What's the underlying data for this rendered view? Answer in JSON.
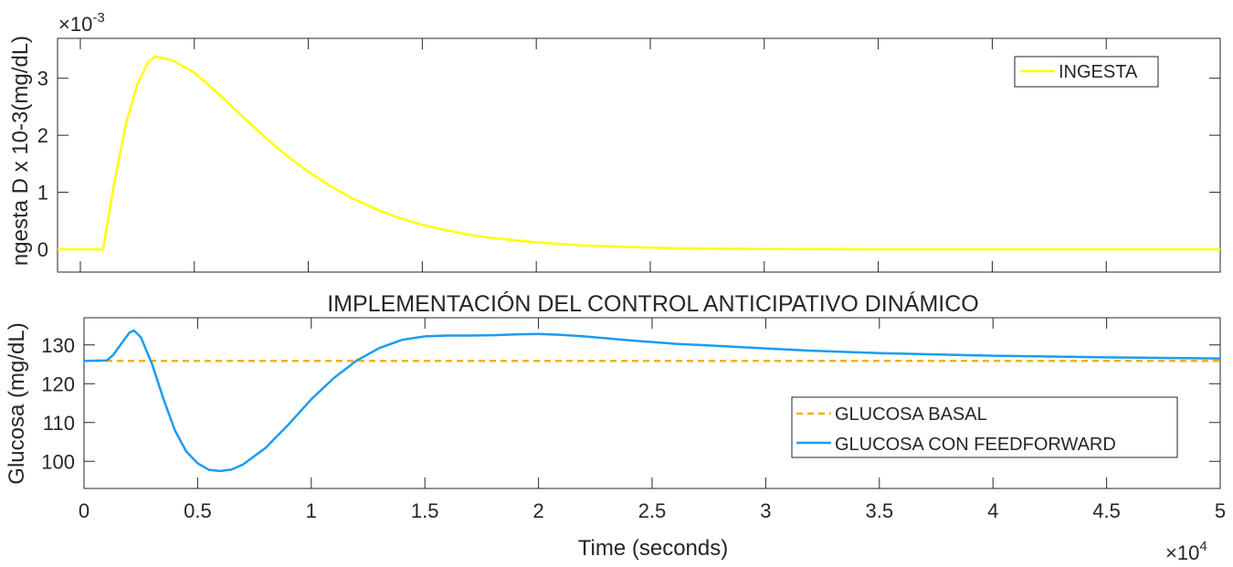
{
  "chart_data": [
    {
      "type": "line",
      "title": "",
      "xlabel": "",
      "ylabel": "ngesta D x 10-3(mg/dL)",
      "y_multiplier_label": "×10",
      "y_multiplier_exp": "-3",
      "xlim": [
        -1000,
        50000
      ],
      "ylim": [
        -0.0004,
        0.0037
      ],
      "yticks": [
        0,
        0.001,
        0.002,
        0.003
      ],
      "ytick_labels": [
        "0",
        "1",
        "2",
        "3"
      ],
      "grid": false,
      "legend_position": "top-right",
      "series": [
        {
          "name": "INGESTA",
          "color": "#ffff00",
          "x": [
            -1000,
            0,
            1000,
            1500,
            2000,
            2500,
            3000,
            3300,
            4000,
            5000,
            6000,
            7000,
            8000,
            9000,
            10000,
            11000,
            12000,
            13000,
            14000,
            15000,
            16000,
            17000,
            18000,
            19000,
            20000,
            22000,
            24000,
            26000,
            28000,
            30000,
            35000,
            40000,
            45000,
            50000
          ],
          "y": [
            0,
            0,
            0,
            0.0012,
            0.0022,
            0.0029,
            0.0033,
            0.00338,
            0.00332,
            0.0031,
            0.00275,
            0.00237,
            0.002,
            0.00166,
            0.00136,
            0.0011,
            0.00088,
            0.0007,
            0.00055,
            0.00043,
            0.00034,
            0.00026,
            0.0002,
            0.00016,
            0.00012,
            7e-05,
            4e-05,
            2e-05,
            1e-05,
            5e-06,
            0,
            0,
            0,
            0
          ]
        }
      ]
    },
    {
      "type": "line",
      "title": "IMPLEMENTACIÓN DEL CONTROL ANTICIPATIVO DINÁMICO",
      "xlabel": "Time (seconds)",
      "ylabel": "Glucosa (mg/dL)",
      "x_multiplier_label": "×10",
      "x_multiplier_exp": "4",
      "xlim": [
        0,
        50000
      ],
      "ylim": [
        93,
        137
      ],
      "xticks": [
        0,
        5000,
        10000,
        15000,
        20000,
        25000,
        30000,
        35000,
        40000,
        45000,
        50000
      ],
      "xtick_labels": [
        "0",
        "0.5",
        "1",
        "1.5",
        "2",
        "2.5",
        "3",
        "3.5",
        "4",
        "4.5",
        "5"
      ],
      "yticks": [
        100,
        110,
        120,
        130
      ],
      "ytick_labels": [
        "100",
        "110",
        "120",
        "130"
      ],
      "grid": false,
      "legend_position": "right",
      "series": [
        {
          "name": "GLUCOSA BASAL",
          "color": "#edb120",
          "style": "dashed",
          "x": [
            0,
            50000
          ],
          "y": [
            125.9,
            125.9
          ]
        },
        {
          "name": "GLUCOSA CON FEEDFORWARD",
          "color": "#1a9cf0",
          "style": "solid",
          "x": [
            0,
            1000,
            1300,
            1600,
            2000,
            2200,
            2500,
            3000,
            3500,
            4000,
            4500,
            5000,
            5500,
            6000,
            6500,
            7000,
            8000,
            9000,
            10000,
            11000,
            12000,
            13000,
            14000,
            15000,
            16000,
            17000,
            18000,
            19000,
            20000,
            21000,
            22000,
            24000,
            26000,
            28000,
            30000,
            32000,
            35000,
            40000,
            45000,
            50000
          ],
          "y": [
            125.9,
            126,
            127.5,
            130,
            133.2,
            133.7,
            132,
            125,
            116,
            108,
            102.5,
            99.5,
            97.8,
            97.5,
            97.9,
            99.2,
            103.5,
            109.5,
            116,
            121.5,
            126,
            129.2,
            131.3,
            132.2,
            132.4,
            132.4,
            132.5,
            132.7,
            132.8,
            132.6,
            132.2,
            131.2,
            130.3,
            129.7,
            129.1,
            128.5,
            127.9,
            127.2,
            126.8,
            126.5
          ]
        }
      ]
    }
  ]
}
